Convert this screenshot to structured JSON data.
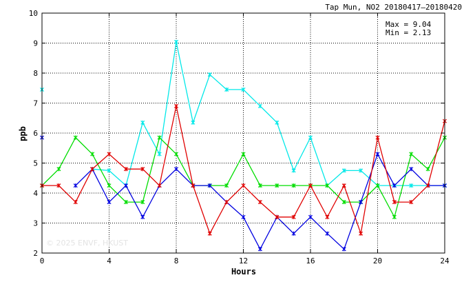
{
  "chart_data": {
    "type": "line",
    "title": "Tap Mun, NO2 20180417–20180420",
    "xlabel": "Hours",
    "ylabel": "ppb",
    "xlim": [
      0,
      24
    ],
    "ylim": [
      2,
      10
    ],
    "xticks": [
      0,
      4,
      8,
      12,
      16,
      20,
      24
    ],
    "yticks": [
      2,
      3,
      4,
      5,
      6,
      7,
      8,
      9,
      10
    ],
    "grid": true,
    "annotations": {
      "max": "Max = 9.04",
      "min": "Min = 2.13"
    },
    "watermark": "© 2025 ENVF, HKUST",
    "x": [
      0,
      1,
      2,
      3,
      4,
      5,
      6,
      7,
      8,
      9,
      10,
      11,
      12,
      13,
      14,
      15,
      16,
      17,
      18,
      19,
      20,
      21,
      22,
      23,
      24
    ],
    "series": [
      {
        "color": "#00e8e8",
        "values": [
          7.45,
          null,
          null,
          4.8,
          4.75,
          4.25,
          6.35,
          5.3,
          9.04,
          6.35,
          7.95,
          7.45,
          7.45,
          6.9,
          6.35,
          4.75,
          5.85,
          4.25,
          4.75,
          4.75,
          4.25,
          4.25,
          4.25,
          4.25,
          4.25
        ]
      },
      {
        "color": "#00dd00",
        "values": [
          4.25,
          4.8,
          5.85,
          5.3,
          4.25,
          3.7,
          3.7,
          5.85,
          5.3,
          4.25,
          4.25,
          4.25,
          5.3,
          4.25,
          4.25,
          4.25,
          4.25,
          4.25,
          3.7,
          3.7,
          4.25,
          3.2,
          5.3,
          4.8,
          5.85
        ]
      },
      {
        "color": "#0000e0",
        "values": [
          5.85,
          null,
          4.25,
          4.8,
          3.7,
          4.25,
          3.2,
          4.25,
          4.8,
          4.25,
          4.25,
          3.7,
          3.2,
          2.13,
          3.2,
          2.65,
          3.2,
          2.65,
          2.13,
          3.7,
          5.3,
          4.25,
          4.8,
          4.25,
          4.25
        ]
      },
      {
        "color": "#e00000",
        "values": [
          4.25,
          4.25,
          3.7,
          4.8,
          5.3,
          4.8,
          4.8,
          4.25,
          6.9,
          4.25,
          2.65,
          3.7,
          4.25,
          3.7,
          3.2,
          3.2,
          4.25,
          3.2,
          4.25,
          2.65,
          5.85,
          3.7,
          3.7,
          4.25,
          6.4
        ]
      }
    ]
  }
}
